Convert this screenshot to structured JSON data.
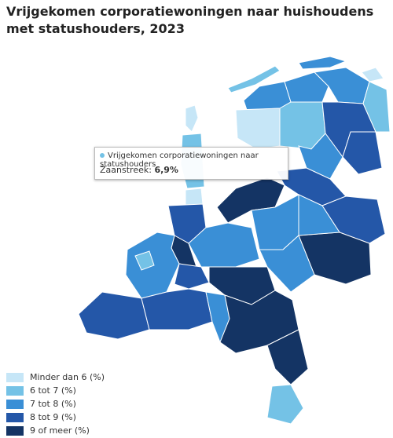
{
  "title": "Vrijgekomen corporatiewoningen naar huishoudens met statushouders, 2023",
  "tooltip": {
    "series": "Vrijgekomen corporatiewoningen naar statushouders",
    "region": "Zaanstreek:",
    "value": "6,9%"
  },
  "legend": [
    {
      "label": "Minder dan 6 (%)",
      "color": "#c6e6f7"
    },
    {
      "label": "6 tot 7 (%)",
      "color": "#74c2e6"
    },
    {
      "label": "7 tot 8 (%)",
      "color": "#3a8fd6"
    },
    {
      "label": "8 tot 9 (%)",
      "color": "#2457a8"
    },
    {
      "label": "9 of meer (%)",
      "color": "#143464"
    }
  ]
}
